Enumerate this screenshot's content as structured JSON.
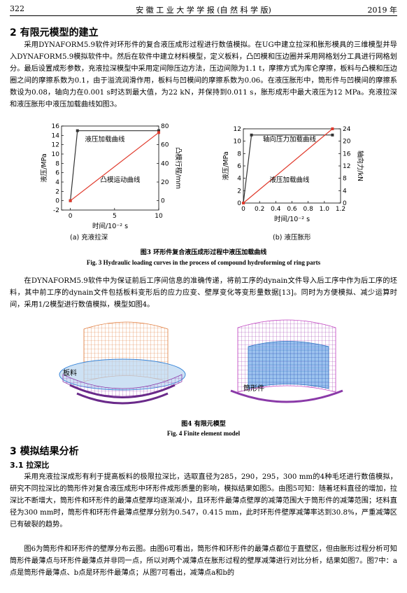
{
  "header": {
    "page": "322",
    "journal": "安 徽 工 业 大 学 学 报 (自 然 科 学 版)",
    "year": "2019 年"
  },
  "section2": {
    "title": "2  有限元模型的建立",
    "para1": "采用DYNAFORM5.9软件对环形件的复合液压成形过程进行数值模拟。在UG中建立拉深和胀形模具的三维模型并导入DYNAFORM5.9模拟软件中。然后在软件中建立材料模型，定义板料，凸凹模和压边圈并采用网格划分工具进行网格划分。最后设置成形参数，充液拉深模型中采用定间隙压边方法，压边间隙为1.1 t，摩擦方式为库仑摩擦，板料与凸模和压边圈之间的摩擦系数为0.1，由于溢流润滑作用，板料与凹模间的摩擦系数为0.06。在液压胀形中，筒形件与凹模间的摩擦系数设为0.08，轴向力在0.001 s时达到最大值，为22 kN，并保持到0.011 s，胀形成形中最大液压为12 MPa。充液拉深和液压胀形中液压加载曲线如图3。",
    "para2": "在DYNAFORM5.9软件中为保证前后工序间信息的准确传递，将前工序的dynain文件导入后工序中作为后工序的坯料，其中前工序的dynain文件包括板料变形后的应力应变、壁厚变化等变形量数据[13]。同时为方便模拟、减少运算时间，采用1/2模型进行数值模拟，模型如图4。"
  },
  "figure3": {
    "caption_cn": "图3  环形件复合液压成形过程中液压加载曲线",
    "caption_en": "Fig. 3   Hydraulic loading curves in the process of compound hydroforming of ring parts",
    "sub_a": "(a) 充液拉深",
    "sub_b": "(b) 液压胀形"
  },
  "chart_data": [
    {
      "type": "line",
      "xlabel": "时间/10⁻² s",
      "ylabel": "液压/MPa",
      "y2label": "凸模行程/mm",
      "xlim": [
        -1,
        10
      ],
      "ylim": [
        -2,
        16
      ],
      "y2lim": [
        -10,
        80
      ],
      "xticks": [
        "0",
        "5",
        "10"
      ],
      "yticks": [
        "-2",
        "0",
        "2",
        "4",
        "6",
        "8",
        "10",
        "12",
        "14",
        "16"
      ],
      "y2ticks": [
        "0",
        "20",
        "40",
        "60",
        "80"
      ],
      "series": [
        {
          "name": "液压加载曲线",
          "color": "#333333",
          "x": [
            0,
            0.8,
            10
          ],
          "y": [
            0,
            15,
            15
          ],
          "axis": "left"
        },
        {
          "name": "凸模运动曲线",
          "color": "#e0392b",
          "x": [
            0,
            10
          ],
          "y": [
            0,
            73
          ],
          "axis": "right"
        }
      ],
      "annotations": [
        "液压加载曲线",
        "凸模运动曲线"
      ]
    },
    {
      "type": "line",
      "xlabel": "时间/10⁻² s",
      "ylabel": "液压/MPa",
      "y2label": "轴向力/kN",
      "xlim": [
        0,
        1.2
      ],
      "ylim": [
        0,
        12
      ],
      "y2lim": [
        0,
        24
      ],
      "xticks": [
        "0",
        "0.2",
        "0.4",
        "0.6",
        "0.8",
        "1.0",
        "1.2"
      ],
      "yticks": [
        "0",
        "2",
        "4",
        "6",
        "8",
        "10",
        "12"
      ],
      "y2ticks": [
        "0",
        "4",
        "8",
        "12",
        "16",
        "20",
        "24"
      ],
      "series": [
        {
          "name": "轴向压力加载曲线",
          "color": "#333333",
          "x": [
            0,
            0.1,
            1.1
          ],
          "y": [
            0,
            22,
            22
          ],
          "axis": "right"
        },
        {
          "name": "液压加载曲线",
          "color": "#e0392b",
          "x": [
            0,
            1.1
          ],
          "y": [
            0,
            12
          ],
          "axis": "left"
        }
      ],
      "annotations": [
        "轴向压力加载曲线",
        "液压加载曲线"
      ]
    }
  ],
  "figure4": {
    "label_sheet": "板料",
    "label_tube": "筒形件",
    "caption_cn": "图4  有限元模型",
    "caption_en": "Fig. 4   Finite element model",
    "colors": {
      "orange": "#e07a3a",
      "blue": "#3a86d8",
      "purple": "#8a3aa8",
      "magenta": "#c040c0"
    }
  },
  "section3": {
    "title": "3  模拟结果分析",
    "sub31": "3.1  拉深比",
    "para1": "采用充液拉深成形有利于提高板料的极限拉深比，选取直径为285，290，295，300 mm的4种毛坯进行数值模拟，研究不同拉深比的筒形件对复合液压成形中环形件成形质量的影响，模拟结果如图5。由图5可知：随着坯料直径的增加，拉深比不断增大，筒形件和环形件的最薄点壁厚均逐渐减小，且环形件最薄点壁厚的减薄范围大于筒形件的减薄范围；坯料直径为300 mm时，筒形件和环形件最薄点壁厚分别为0.547，0.415 mm，此时环形件壁厚减薄率达到30.8%，严重减薄区已有破裂的趋势。",
    "para2": "图6为筒形件和环形件的壁厚分布云图。由图6可看出，筒形件和环形件的最薄点都位于直壁区，但由胀形过程分析可知筒形件最薄点与环形件最薄点并非同一点，所以对两个减薄点在胀形过程的壁厚减薄进行对比分析，结果如图7。图7中：a点是筒形件最薄点、b点是环形件最薄点；从图7可看出，减薄点a和b的"
  }
}
